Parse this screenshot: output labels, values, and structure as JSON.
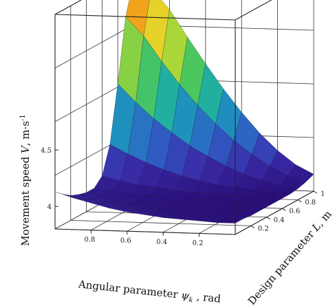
{
  "chart_data": {
    "type": "surface3d",
    "title": "",
    "zlabel": {
      "prefix": "Movement  speed  ",
      "var": "V",
      "unit": ", m·s",
      "sup": "-1"
    },
    "xlabel": {
      "prefix": "Angular parameter  ",
      "var": "ψ",
      "sub": "k",
      "unit": " , rad"
    },
    "ylabel": {
      "prefix": "Design parameter  ",
      "var": "L",
      "unit": ", m"
    },
    "x_axis": {
      "name": "psi_k",
      "range": [
        0,
        1
      ],
      "ticks": [
        0.2,
        0.4,
        0.6,
        0.8
      ],
      "tick_labels": [
        "0.2",
        "0.4",
        "0.6",
        "0.8"
      ]
    },
    "y_axis": {
      "name": "L",
      "range": [
        0,
        1
      ],
      "ticks": [
        0.2,
        0.4,
        0.6,
        0.8,
        1
      ],
      "tick_labels": [
        "0.2",
        "0.4",
        "0.6",
        "0.8",
        "1"
      ]
    },
    "z_axis": {
      "name": "V",
      "range": [
        3.8,
        5.7
      ],
      "ticks": [
        4,
        4.5
      ],
      "tick_labels": [
        "4",
        "4.5"
      ]
    },
    "colormap": [
      "#2a0f7a",
      "#3a2ba8",
      "#2e5fc4",
      "#1f8fbf",
      "#21b39a",
      "#4fc85a",
      "#a8d63a",
      "#e4d92a",
      "#f2a11a",
      "#d84a12"
    ],
    "grid": true,
    "surface": {
      "psi": [
        0,
        0.1,
        0.2,
        0.3,
        0.4,
        0.5,
        0.6,
        0.7,
        0.8,
        0.9,
        1.0
      ],
      "L": [
        0,
        0.1,
        0.2,
        0.3,
        0.4,
        0.5,
        0.6,
        0.7,
        0.8,
        0.9,
        1.0
      ],
      "V": [
        [
          3.9,
          3.9,
          3.91,
          3.92,
          3.93,
          3.95,
          3.97,
          4.0,
          4.04,
          4.08,
          4.13
        ],
        [
          3.9,
          3.9,
          3.9,
          3.91,
          3.92,
          3.93,
          3.95,
          3.97,
          4.0,
          4.03,
          4.07
        ],
        [
          3.89,
          3.89,
          3.89,
          3.9,
          3.91,
          3.92,
          3.93,
          3.95,
          3.97,
          3.99,
          4.02
        ],
        [
          3.89,
          3.89,
          3.89,
          3.9,
          3.9,
          3.91,
          3.92,
          3.93,
          3.95,
          3.97,
          3.99
        ],
        [
          3.89,
          3.89,
          3.89,
          3.9,
          3.9,
          3.91,
          3.91,
          3.92,
          3.94,
          3.95,
          3.97
        ],
        [
          3.89,
          3.89,
          3.89,
          3.9,
          3.9,
          3.91,
          3.91,
          3.92,
          3.93,
          3.95,
          3.97
        ],
        [
          3.89,
          3.89,
          3.9,
          3.9,
          3.91,
          3.92,
          3.93,
          3.95,
          3.97,
          4.0,
          4.04
        ],
        [
          3.89,
          3.9,
          3.91,
          3.93,
          3.95,
          3.98,
          4.02,
          4.07,
          4.13,
          4.2,
          4.28
        ],
        [
          3.9,
          3.92,
          3.96,
          4.01,
          4.08,
          4.16,
          4.25,
          4.36,
          4.48,
          4.62,
          4.78
        ],
        [
          3.92,
          3.97,
          4.05,
          4.15,
          4.27,
          4.41,
          4.57,
          4.75,
          4.95,
          5.17,
          5.33
        ],
        [
          3.95,
          4.03,
          4.15,
          4.3,
          4.48,
          4.68,
          4.9,
          5.13,
          5.37,
          5.55,
          5.62
        ]
      ]
    }
  }
}
